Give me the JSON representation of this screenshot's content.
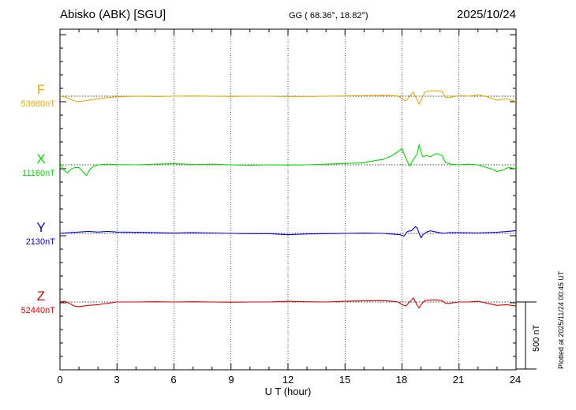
{
  "header": {
    "station": "Abisko (ABK)  [SGU]",
    "coords": "GG ( 68.36°,  18.82°)",
    "date": "2025/10/24"
  },
  "plotted_note": "Plotted at 2025/11/24 00:45 UT",
  "scale_label": "500 nT",
  "chart_data": {
    "type": "line",
    "xlabel": "U T (hour)",
    "xlim": [
      0,
      24
    ],
    "xticks": [
      "0",
      "3",
      "6",
      "9",
      "12",
      "15",
      "18",
      "21",
      "24"
    ],
    "scale_bar_nT": 500,
    "series": [
      {
        "name": "F",
        "baseline_label": "53660nT",
        "color": "#f0a800",
        "baseline_nT": 53660,
        "x": [
          0,
          0.25,
          0.5,
          0.75,
          1,
          1.25,
          1.5,
          2,
          2.5,
          3,
          4,
          5,
          6,
          7,
          8,
          9,
          10,
          11,
          12,
          13,
          14,
          15,
          16,
          17,
          17.5,
          17.8,
          18,
          18.2,
          18.4,
          18.6,
          18.8,
          18.9,
          19,
          19.2,
          19.5,
          19.8,
          20.1,
          20.3,
          20.5,
          21,
          21.5,
          22,
          22.5,
          23,
          23.5,
          24
        ],
        "y": [
          53660,
          53655,
          53640,
          53625,
          53620,
          53625,
          53630,
          53640,
          53650,
          53655,
          53660,
          53658,
          53660,
          53662,
          53660,
          53658,
          53660,
          53660,
          53657,
          53658,
          53660,
          53662,
          53665,
          53667,
          53665,
          53662,
          53640,
          53625,
          53660,
          53690,
          53630,
          53600,
          53630,
          53690,
          53700,
          53700,
          53695,
          53650,
          53650,
          53665,
          53660,
          53670,
          53655,
          53630,
          53640,
          53620
        ]
      },
      {
        "name": "X",
        "baseline_label": "11160nT",
        "color": "#00dd00",
        "baseline_nT": 11160,
        "x": [
          0,
          0.2,
          0.4,
          0.6,
          0.8,
          1,
          1.2,
          1.4,
          1.6,
          1.8,
          2,
          2.5,
          3,
          4,
          5,
          6,
          7,
          8,
          9,
          10,
          11,
          12,
          13,
          14,
          15,
          16,
          16.5,
          17,
          17.5,
          17.8,
          18,
          18.2,
          18.4,
          18.6,
          18.8,
          18.9,
          19,
          19.1,
          19.3,
          19.5,
          19.8,
          20.1,
          20.3,
          20.6,
          21,
          21.5,
          22,
          22.3,
          22.6,
          23,
          23.3,
          23.6,
          24
        ],
        "y": [
          11175,
          11120,
          11100,
          11130,
          11140,
          11140,
          11110,
          11080,
          11130,
          11150,
          11160,
          11165,
          11162,
          11160,
          11165,
          11168,
          11163,
          11165,
          11160,
          11155,
          11160,
          11158,
          11160,
          11165,
          11170,
          11175,
          11190,
          11200,
          11230,
          11260,
          11280,
          11210,
          11150,
          11200,
          11240,
          11310,
          11255,
          11220,
          11230,
          11220,
          11245,
          11230,
          11175,
          11165,
          11160,
          11165,
          11160,
          11145,
          11135,
          11110,
          11120,
          11140,
          11130
        ]
      },
      {
        "name": "Y",
        "baseline_label": "2130nT",
        "color": "#0000dd",
        "baseline_nT": 2130,
        "x": [
          0,
          0.5,
          1,
          1.5,
          2,
          2.5,
          3,
          4,
          5,
          6,
          7,
          8,
          9,
          10,
          11,
          12,
          13,
          14,
          15,
          16,
          17,
          17.5,
          17.9,
          18.1,
          18.3,
          18.5,
          18.7,
          18.8,
          18.9,
          19,
          19.1,
          19.3,
          19.5,
          19.8,
          20.2,
          20.5,
          21,
          22,
          23,
          24
        ],
        "y": [
          2130,
          2135,
          2140,
          2145,
          2140,
          2145,
          2140,
          2138,
          2135,
          2132,
          2135,
          2133,
          2130,
          2128,
          2128,
          2120,
          2126,
          2128,
          2130,
          2132,
          2130,
          2125,
          2120,
          2110,
          2145,
          2150,
          2180,
          2170,
          2130,
          2095,
          2120,
          2140,
          2150,
          2140,
          2130,
          2135,
          2135,
          2133,
          2138,
          2150
        ]
      },
      {
        "name": "Z",
        "baseline_label": "52440nT",
        "color": "#dd0000",
        "baseline_nT": 52440,
        "x": [
          0,
          0.25,
          0.5,
          0.75,
          1,
          1.25,
          1.5,
          2,
          2.5,
          3,
          4,
          5,
          6,
          7,
          8,
          9,
          10,
          11,
          12,
          13,
          14,
          15,
          16,
          17,
          17.5,
          17.8,
          18,
          18.2,
          18.4,
          18.6,
          18.8,
          18.9,
          19,
          19.2,
          19.5,
          19.8,
          20.1,
          20.3,
          20.5,
          21,
          21.5,
          22,
          22.5,
          23,
          23.5,
          24
        ],
        "y": [
          52440,
          52445,
          52430,
          52410,
          52405,
          52410,
          52415,
          52420,
          52430,
          52440,
          52440,
          52442,
          52440,
          52442,
          52440,
          52438,
          52440,
          52440,
          52445,
          52442,
          52440,
          52445,
          52448,
          52450,
          52445,
          52440,
          52420,
          52410,
          52440,
          52470,
          52415,
          52395,
          52420,
          52450,
          52455,
          52455,
          52450,
          52430,
          52430,
          52440,
          52440,
          52445,
          52430,
          52415,
          52420,
          52410
        ]
      }
    ]
  }
}
